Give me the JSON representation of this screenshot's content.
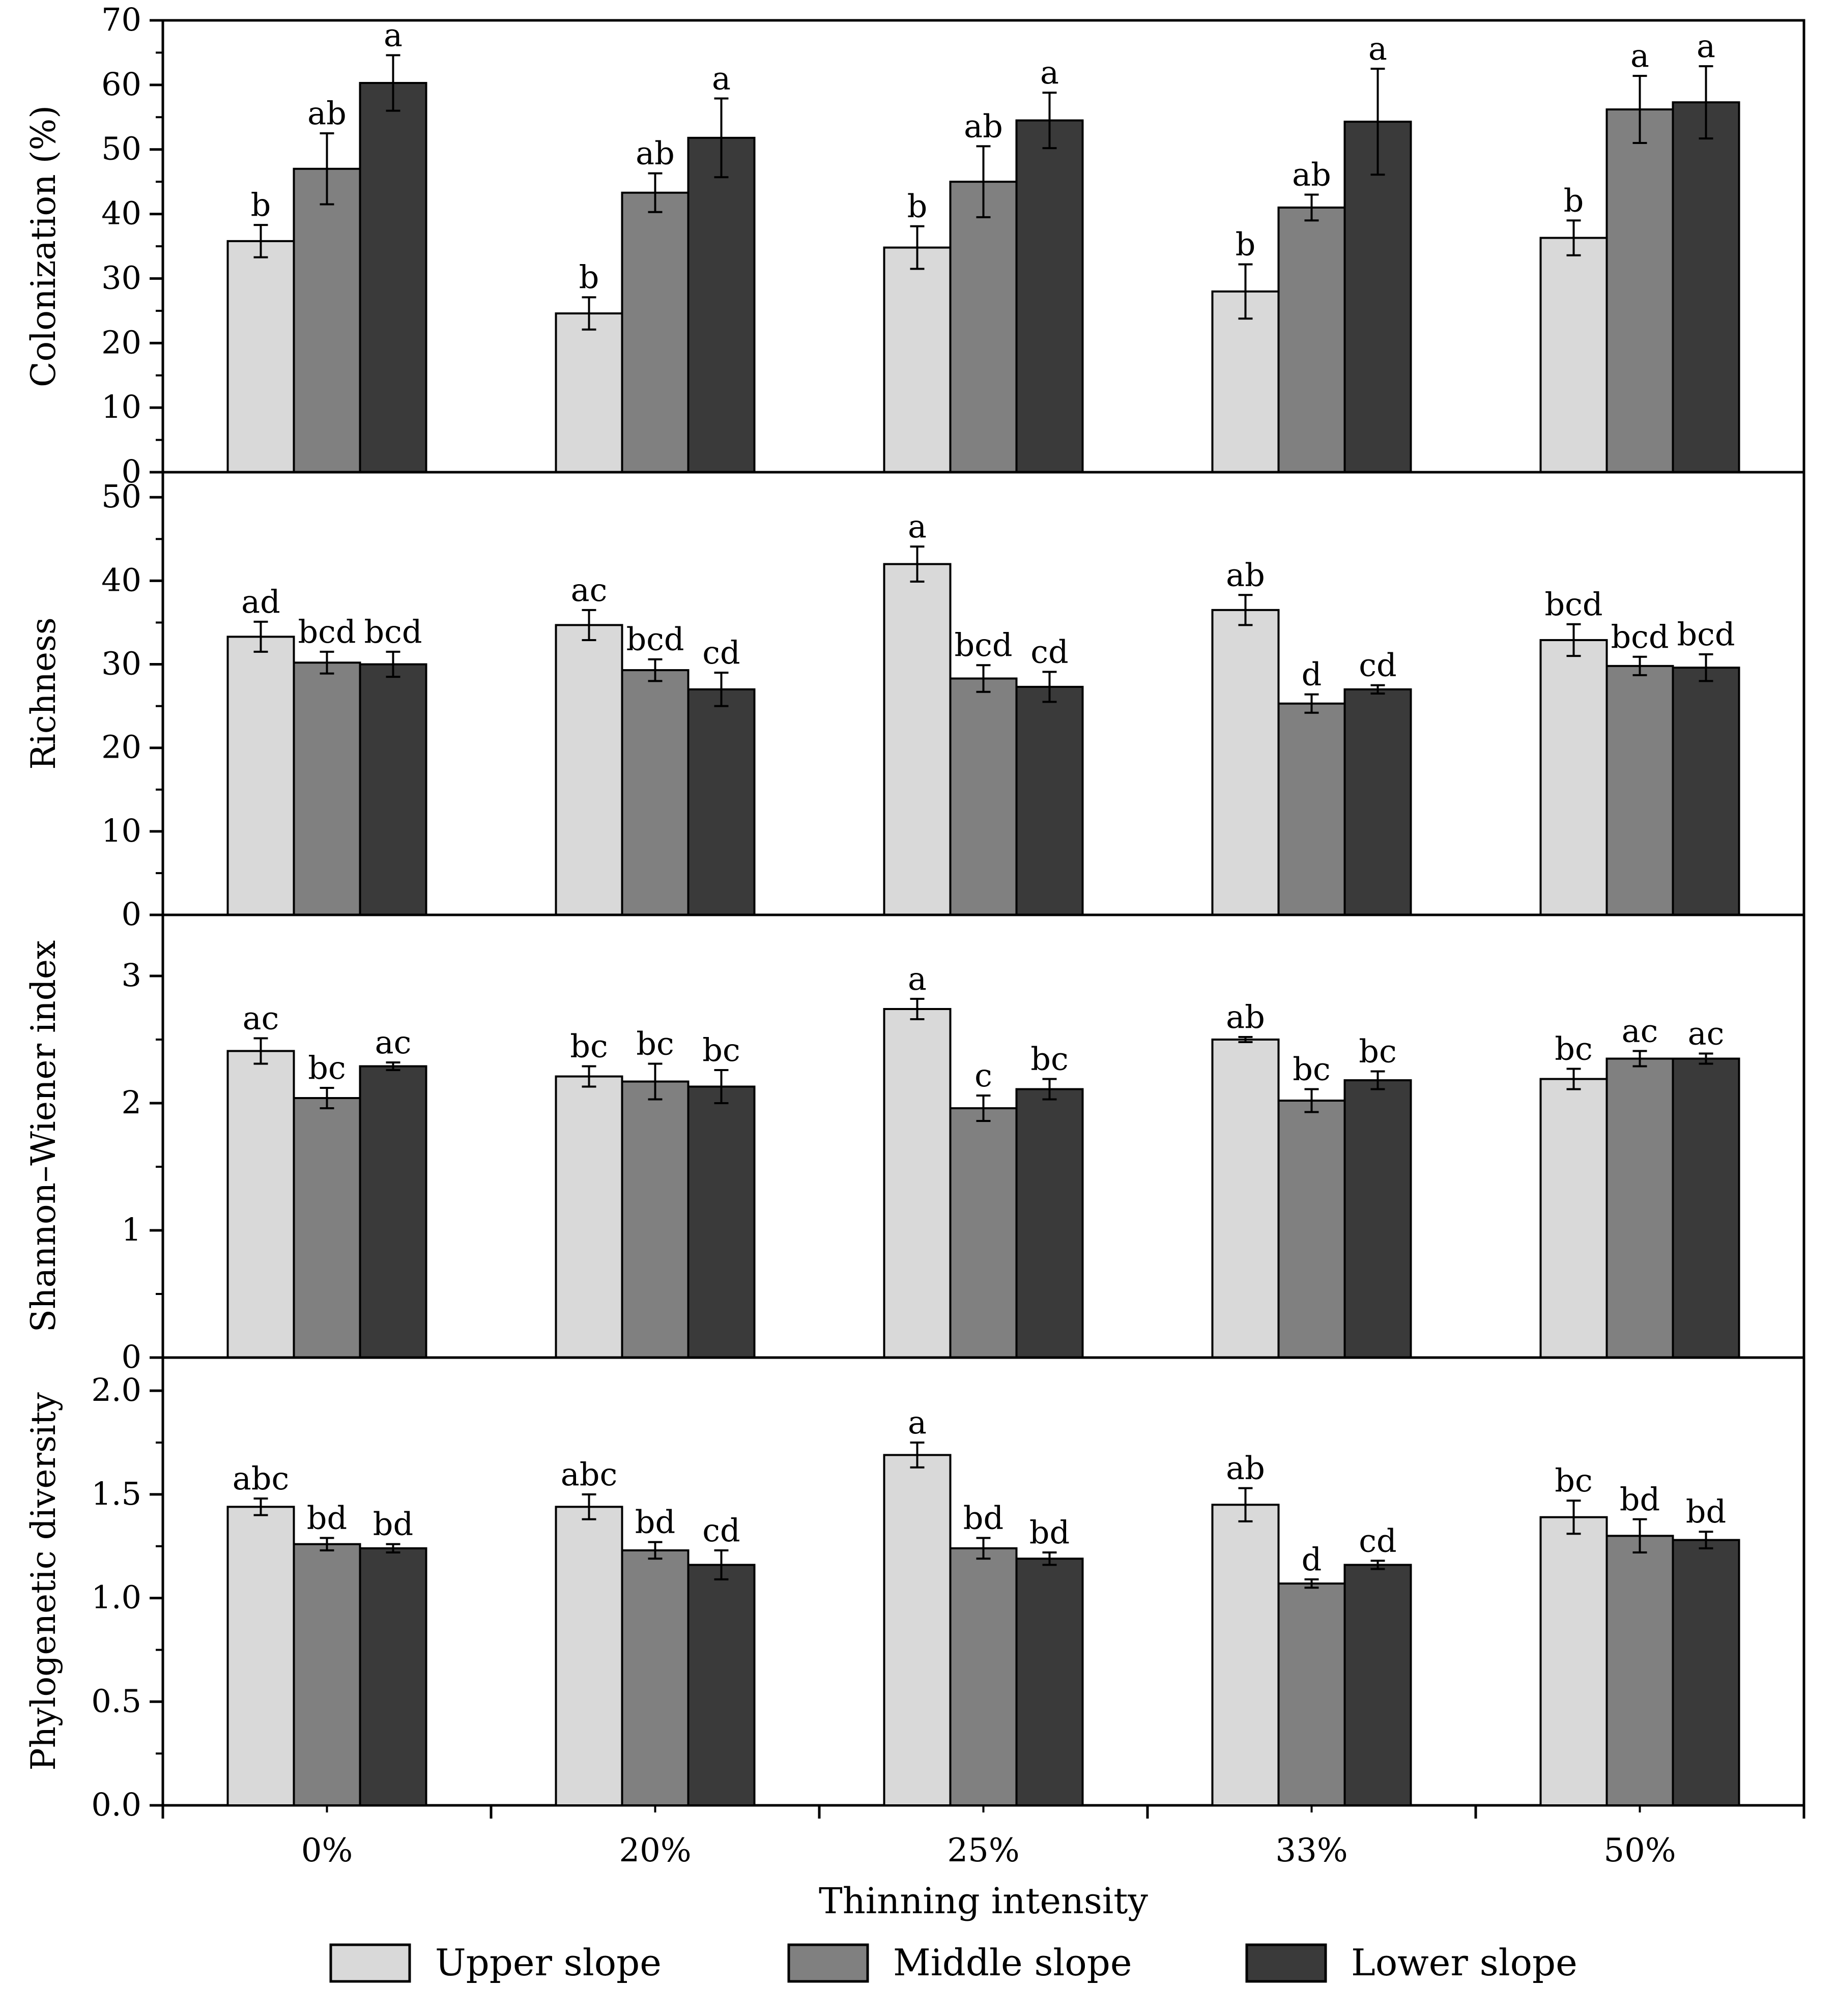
{
  "chart_data": {
    "type": "bar",
    "xlabel": "Thinning intensity",
    "categories": [
      "0%",
      "20%",
      "25%",
      "33%",
      "50%"
    ],
    "legend": {
      "placement": "bottom",
      "items": [
        {
          "name": "Upper slope",
          "color": "#d9d9d9"
        },
        {
          "name": "Middle slope",
          "color": "#808080"
        },
        {
          "name": "Lower slope",
          "color": "#3a3a3a"
        }
      ]
    },
    "panels": [
      {
        "ylabel": "Colonization (%)",
        "ylim": [
          0,
          70
        ],
        "yticks": [
          0,
          10,
          20,
          30,
          40,
          50,
          60,
          70
        ],
        "ytick_labels": [
          "0",
          "10",
          "20",
          "30",
          "40",
          "50",
          "60",
          "70"
        ],
        "series": [
          {
            "name": "Upper slope",
            "values": [
              35.8,
              24.6,
              34.8,
              28.0,
              36.3
            ],
            "errors": [
              2.5,
              2.5,
              3.3,
              4.2,
              2.7
            ],
            "letters": [
              "b",
              "b",
              "b",
              "b",
              "b"
            ]
          },
          {
            "name": "Middle slope",
            "values": [
              47.0,
              43.3,
              45.0,
              41.0,
              56.2
            ],
            "errors": [
              5.5,
              3.0,
              5.5,
              2.0,
              5.2
            ],
            "letters": [
              "ab",
              "ab",
              "ab",
              "ab",
              "a"
            ]
          },
          {
            "name": "Lower slope",
            "values": [
              60.3,
              51.8,
              54.5,
              54.3,
              57.3
            ],
            "errors": [
              4.3,
              6.1,
              4.3,
              8.2,
              5.6
            ],
            "letters": [
              "a",
              "a",
              "a",
              "a",
              "a"
            ]
          }
        ]
      },
      {
        "ylabel": "Richness",
        "ylim": [
          0,
          53
        ],
        "yticks": [
          0,
          10,
          20,
          30,
          40,
          50
        ],
        "ytick_labels": [
          "0",
          "10",
          "20",
          "30",
          "40",
          "50"
        ],
        "series": [
          {
            "name": "Upper slope",
            "values": [
              33.3,
              34.7,
              42.0,
              36.5,
              32.9
            ],
            "errors": [
              1.8,
              1.8,
              2.1,
              1.8,
              1.9
            ],
            "letters": [
              "ad",
              "ac",
              "a",
              "ab",
              "bcd"
            ]
          },
          {
            "name": "Middle slope",
            "values": [
              30.2,
              29.3,
              28.3,
              25.3,
              29.8
            ],
            "errors": [
              1.3,
              1.3,
              1.6,
              1.1,
              1.1
            ],
            "letters": [
              "bcd",
              "bcd",
              "bcd",
              "d",
              "bcd"
            ]
          },
          {
            "name": "Lower slope",
            "values": [
              30.0,
              27.0,
              27.3,
              27.0,
              29.6
            ],
            "errors": [
              1.5,
              2.0,
              1.8,
              0.5,
              1.6
            ],
            "letters": [
              "bcd",
              "cd",
              "cd",
              "cd",
              "bcd"
            ]
          }
        ]
      },
      {
        "ylabel": "Shannon–Wiener index",
        "ylim": [
          0,
          3.48
        ],
        "yticks": [
          0,
          1,
          2,
          3
        ],
        "ytick_labels": [
          "0",
          "1",
          "2",
          "3"
        ],
        "series": [
          {
            "name": "Upper slope",
            "values": [
              2.41,
              2.21,
              2.74,
              2.5,
              2.19
            ],
            "errors": [
              0.1,
              0.08,
              0.08,
              0.02,
              0.08
            ],
            "letters": [
              "ac",
              "bc",
              "a",
              "ab",
              "bc"
            ]
          },
          {
            "name": "Middle slope",
            "values": [
              2.04,
              2.17,
              1.96,
              2.02,
              2.35
            ],
            "errors": [
              0.08,
              0.14,
              0.1,
              0.09,
              0.06
            ],
            "letters": [
              "bc",
              "bc",
              "c",
              "bc",
              "ac"
            ]
          },
          {
            "name": "Lower slope",
            "values": [
              2.29,
              2.13,
              2.11,
              2.18,
              2.35
            ],
            "errors": [
              0.03,
              0.13,
              0.08,
              0.07,
              0.04
            ],
            "letters": [
              "ac",
              "bc",
              "bc",
              "bc",
              "ac"
            ]
          }
        ]
      },
      {
        "ylabel": "Phylogenetic diversity",
        "ylim": [
          0,
          2.16
        ],
        "yticks": [
          0,
          0.5,
          1.0,
          1.5,
          2.0
        ],
        "ytick_labels": [
          "0.0",
          "0.5",
          "1.0",
          "1.5",
          "2.0"
        ],
        "series": [
          {
            "name": "Upper slope",
            "values": [
              1.44,
              1.44,
              1.69,
              1.45,
              1.39
            ],
            "errors": [
              0.04,
              0.06,
              0.06,
              0.08,
              0.08
            ],
            "letters": [
              "abc",
              "abc",
              "a",
              "ab",
              "bc"
            ]
          },
          {
            "name": "Middle slope",
            "values": [
              1.26,
              1.23,
              1.24,
              1.07,
              1.3
            ],
            "errors": [
              0.03,
              0.04,
              0.05,
              0.02,
              0.08
            ],
            "letters": [
              "bd",
              "bd",
              "bd",
              "d",
              "bd"
            ]
          },
          {
            "name": "Lower slope",
            "values": [
              1.24,
              1.16,
              1.19,
              1.16,
              1.28
            ],
            "errors": [
              0.02,
              0.07,
              0.03,
              0.02,
              0.04
            ],
            "letters": [
              "bd",
              "cd",
              "bd",
              "cd",
              "bd"
            ]
          }
        ]
      }
    ]
  }
}
